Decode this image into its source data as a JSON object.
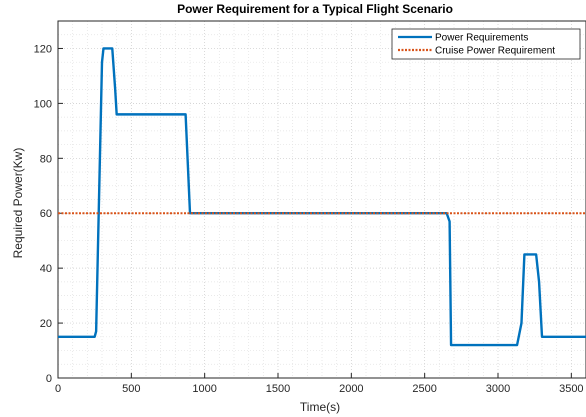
{
  "chart_data": {
    "type": "line",
    "title": "Power Requirement for a Typical Flight Scenario",
    "xlabel": "Time(s)",
    "ylabel": "Required Power(Kw)",
    "xlim": [
      0,
      3600
    ],
    "ylim": [
      0,
      130
    ],
    "xticks": [
      0,
      500,
      1000,
      1500,
      2000,
      2500,
      3000,
      3500
    ],
    "xtick_labels": [
      "0",
      "500",
      "1000",
      "1500",
      "2000",
      "2500",
      "3000",
      "3500"
    ],
    "yticks": [
      0,
      20,
      40,
      60,
      80,
      100,
      120
    ],
    "ytick_labels": [
      "0",
      "20",
      "40",
      "60",
      "80",
      "100",
      "120"
    ],
    "grid": "on (dotted)",
    "legend_position": "top-right",
    "series": [
      {
        "name": "Power Requirements",
        "color": "#0072BD",
        "style": "solid",
        "x": [
          0,
          250,
          260,
          300,
          310,
          370,
          390,
          400,
          870,
          900,
          2650,
          2670,
          2680,
          3130,
          3160,
          3180,
          3260,
          3280,
          3300,
          3600
        ],
        "y": [
          15,
          15,
          17,
          115,
          120,
          120,
          105,
          96,
          96,
          60,
          60,
          57,
          12,
          12,
          20,
          45,
          45,
          35,
          15,
          15
        ]
      },
      {
        "name": "Cruise Power Requirement",
        "color": "#D95319",
        "style": "dotted",
        "x": [
          0,
          3600
        ],
        "y": [
          60,
          60
        ]
      }
    ]
  }
}
